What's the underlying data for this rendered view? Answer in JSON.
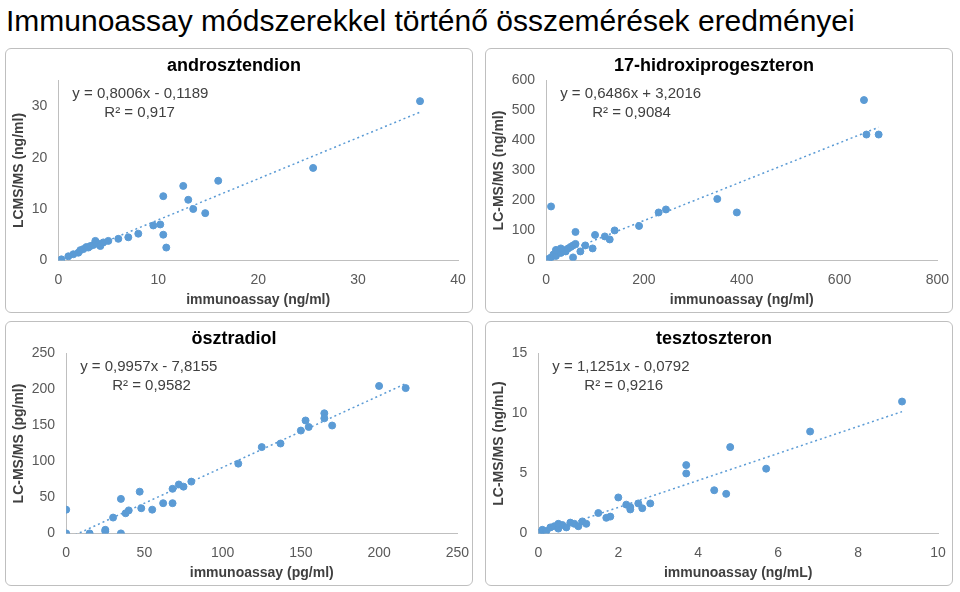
{
  "title": "Immunoassay módszerekkel történő összemérések eredményei",
  "chart_data": [
    {
      "type": "scatter",
      "title": "androsztendion",
      "x_label": "immunoassay (ng/ml)",
      "y_label": "LCMS/MS (ng/ml)",
      "x": [
        0.3,
        1,
        1.5,
        2,
        2.2,
        2.5,
        2.8,
        3,
        3.2,
        3.5,
        3.7,
        3.8,
        4,
        4.2,
        4.5,
        5,
        6,
        7,
        8,
        9.5,
        10.2,
        10.5,
        10.5,
        10.8,
        12.5,
        13,
        13.5,
        14.7,
        16,
        25.5,
        36.2
      ],
      "values": [
        0.2,
        0.8,
        1.2,
        1.5,
        2,
        2.2,
        2.6,
        2.5,
        2.8,
        3,
        3.8,
        3.5,
        3.2,
        2.8,
        3.5,
        3.8,
        4.2,
        4.5,
        5.2,
        6.8,
        7,
        12.5,
        5,
        2.5,
        14.5,
        11.8,
        10,
        9.2,
        15.5,
        18,
        31
      ],
      "color": "#5b9bd5",
      "marker": "circle",
      "line_style": "dotted",
      "grid": false,
      "xlim": [
        0,
        40
      ],
      "xticks": [
        0,
        10,
        20,
        30,
        40
      ],
      "ylim": [
        0,
        35
      ],
      "yticks": [
        0,
        10,
        20,
        30
      ],
      "trendline": {
        "slope": 0.8006,
        "intercept": -0.1189
      },
      "annotations": [
        "y = 0,8006x - 0,1189",
        "R² = 0,917"
      ]
    },
    {
      "type": "scatter",
      "title": "17-hidroxiprogeszteron",
      "x_label": "immunoassay (ng/ml)",
      "y_label": "LC-MS/MS (ng/ml)",
      "x": [
        5,
        10,
        15,
        20,
        25,
        30,
        35,
        40,
        45,
        50,
        55,
        60,
        10,
        20,
        30,
        60,
        70,
        55,
        80,
        95,
        100,
        120,
        130,
        140,
        190,
        230,
        245,
        350,
        390,
        650,
        655,
        680
      ],
      "values": [
        5,
        10,
        20,
        15,
        30,
        25,
        35,
        30,
        40,
        45,
        50,
        55,
        180,
        35,
        40,
        95,
        30,
        10,
        50,
        40,
        85,
        80,
        70,
        100,
        115,
        160,
        170,
        205,
        160,
        535,
        420,
        420
      ],
      "color": "#5b9bd5",
      "marker": "circle",
      "line_style": "dotted",
      "grid": false,
      "xlim": [
        0,
        800
      ],
      "xticks": [
        0,
        200,
        400,
        600,
        800
      ],
      "ylim": [
        0,
        600
      ],
      "yticks": [
        0,
        100,
        200,
        300,
        400,
        500,
        600
      ],
      "trendline": {
        "slope": 0.6486,
        "intercept": 3.2016
      },
      "annotations": [
        "y = 0,6486x + 3,2016",
        "R² = 0,9084"
      ]
    },
    {
      "type": "scatter",
      "title": "ösztradiol",
      "x_label": "immunoassay (pg/ml)",
      "y_label": "LC-MS/MS (pg/ml)",
      "x": [
        0,
        0,
        15,
        25,
        25,
        30,
        35,
        35,
        38,
        40,
        47,
        48,
        55,
        62,
        68,
        68,
        72,
        75,
        80,
        110,
        125,
        137,
        150,
        153,
        155,
        165,
        165,
        170,
        200,
        217
      ],
      "values": [
        33,
        0,
        0,
        5,
        3,
        22,
        0,
        48,
        28,
        32,
        58,
        35,
        33,
        42,
        42,
        62,
        68,
        65,
        72,
        97,
        120,
        125,
        143,
        157,
        148,
        167,
        160,
        150,
        205,
        202
      ],
      "color": "#5b9bd5",
      "marker": "circle",
      "line_style": "dotted",
      "grid": false,
      "xlim": [
        0,
        250
      ],
      "xticks": [
        0,
        50,
        100,
        150,
        200,
        250
      ],
      "ylim": [
        0,
        250
      ],
      "yticks": [
        0,
        50,
        100,
        150,
        200,
        250
      ],
      "trendline": {
        "slope": 0.9957,
        "intercept": -7.8155
      },
      "annotations": [
        "y = 0,9957x - 7,8155",
        "R² = 0,9582"
      ]
    },
    {
      "type": "scatter",
      "title": "tesztoszteron",
      "x_label": "immunoassay (ng/mL)",
      "y_label": "LC-MS/MS (ng/mL)",
      "x": [
        0.05,
        0.1,
        0.2,
        0.3,
        0.4,
        0.5,
        0.5,
        0.6,
        0.7,
        0.8,
        0.9,
        1,
        1.1,
        1.2,
        1.5,
        1.7,
        1.8,
        2,
        2.2,
        2.3,
        2.3,
        2.5,
        2.6,
        2.8,
        3.7,
        3.7,
        4.4,
        4.7,
        4.8,
        5.7,
        6.8,
        9.1
      ],
      "values": [
        0.1,
        0.3,
        0.2,
        0.5,
        0.6,
        0.4,
        0.8,
        0.7,
        0.5,
        0.9,
        0.8,
        0.6,
        1,
        0.8,
        1.7,
        1.3,
        1.4,
        3,
        2.4,
        2,
        2.2,
        2.5,
        2.1,
        2.5,
        5.7,
        5,
        3.6,
        3.3,
        7.2,
        5.4,
        8.5,
        11
      ],
      "color": "#5b9bd5",
      "marker": "circle",
      "line_style": "dotted",
      "grid": false,
      "xlim": [
        0,
        10
      ],
      "xticks": [
        0,
        2,
        4,
        6,
        8,
        10
      ],
      "ylim": [
        0,
        15
      ],
      "yticks": [
        0,
        5,
        10,
        15
      ],
      "trendline": {
        "slope": 1.1251,
        "intercept": -0.0792
      },
      "annotations": [
        "y = 1,1251x - 0,0792",
        "R² = 0,9216"
      ]
    }
  ]
}
